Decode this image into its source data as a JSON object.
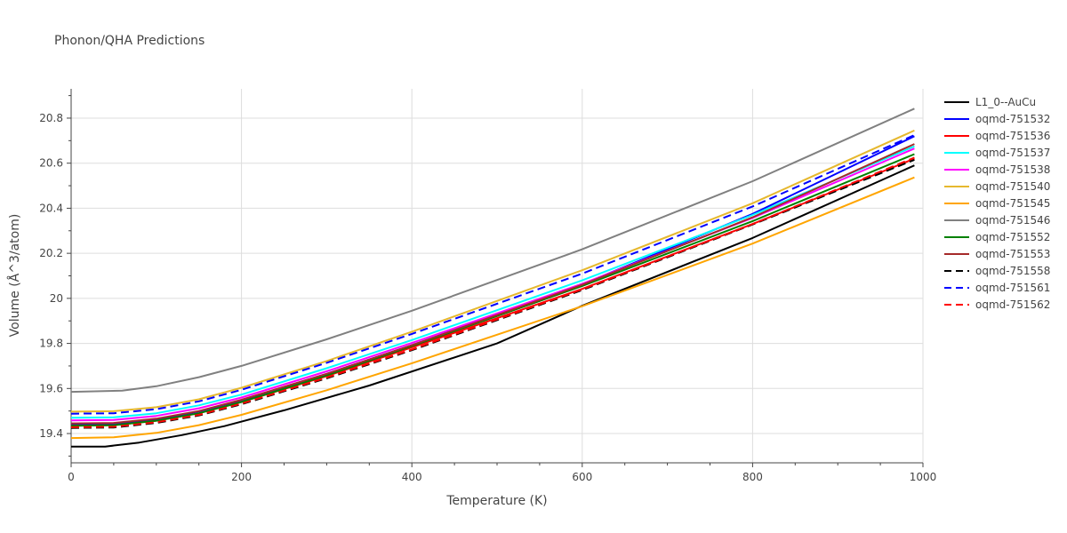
{
  "chart_data": {
    "type": "line",
    "title": "Phonon/QHA Predictions",
    "xlabel": "Temperature (K)",
    "ylabel": "Volume (Å^3/atom)",
    "xlim": [
      0,
      1000
    ],
    "ylim": [
      19.27,
      20.93
    ],
    "xticks": [
      0,
      200,
      400,
      600,
      800,
      1000
    ],
    "yticks": [
      19.4,
      19.6,
      19.8,
      20,
      20.2,
      20.4,
      20.6,
      20.8
    ],
    "ytick_labels": [
      "19.4",
      "19.6",
      "19.8",
      "20",
      "20.2",
      "20.4",
      "20.6",
      "20.8"
    ],
    "grid": true,
    "legend_position": "right",
    "series": [
      {
        "name": "L1_0--AuCu",
        "color": "#000000",
        "dash": "solid",
        "points": [
          [
            0,
            19.342
          ],
          [
            40,
            19.342
          ],
          [
            80,
            19.36
          ],
          [
            130,
            19.393
          ],
          [
            180,
            19.433
          ],
          [
            250,
            19.503
          ],
          [
            350,
            19.613
          ],
          [
            500,
            19.8
          ],
          [
            600,
            19.967
          ],
          [
            800,
            20.268
          ],
          [
            990,
            20.59
          ]
        ]
      },
      {
        "name": "oqmd-751532",
        "color": "#0000ff",
        "dash": "solid",
        "points": [
          [
            0,
            19.44
          ],
          [
            50,
            19.442
          ],
          [
            100,
            19.462
          ],
          [
            150,
            19.498
          ],
          [
            200,
            19.548
          ],
          [
            300,
            19.665
          ],
          [
            400,
            19.792
          ],
          [
            600,
            20.062
          ],
          [
            800,
            20.375
          ],
          [
            990,
            20.72
          ]
        ]
      },
      {
        "name": "oqmd-751536",
        "color": "#ff0000",
        "dash": "solid",
        "points": [
          [
            0,
            19.435
          ],
          [
            50,
            19.437
          ],
          [
            100,
            19.457
          ],
          [
            150,
            19.49
          ],
          [
            200,
            19.54
          ],
          [
            300,
            19.655
          ],
          [
            400,
            19.782
          ],
          [
            600,
            20.042
          ],
          [
            800,
            20.33
          ],
          [
            990,
            20.62
          ]
        ]
      },
      {
        "name": "oqmd-751537",
        "color": "#00ffff",
        "dash": "solid",
        "points": [
          [
            0,
            19.47
          ],
          [
            50,
            19.472
          ],
          [
            100,
            19.49
          ],
          [
            150,
            19.525
          ],
          [
            200,
            19.573
          ],
          [
            300,
            19.69
          ],
          [
            400,
            19.815
          ],
          [
            600,
            20.08
          ],
          [
            800,
            20.37
          ],
          [
            990,
            20.675
          ]
        ]
      },
      {
        "name": "oqmd-751538",
        "color": "#ff00ff",
        "dash": "solid",
        "points": [
          [
            0,
            19.458
          ],
          [
            50,
            19.46
          ],
          [
            100,
            19.478
          ],
          [
            150,
            19.512
          ],
          [
            200,
            19.56
          ],
          [
            300,
            19.676
          ],
          [
            400,
            19.802
          ],
          [
            600,
            20.065
          ],
          [
            800,
            20.357
          ],
          [
            990,
            20.665
          ]
        ]
      },
      {
        "name": "oqmd-751540",
        "color": "#e6b82e",
        "dash": "solid",
        "points": [
          [
            0,
            19.497
          ],
          [
            50,
            19.499
          ],
          [
            100,
            19.517
          ],
          [
            150,
            19.552
          ],
          [
            200,
            19.603
          ],
          [
            300,
            19.722
          ],
          [
            400,
            19.852
          ],
          [
            600,
            20.125
          ],
          [
            800,
            20.422
          ],
          [
            990,
            20.745
          ]
        ]
      },
      {
        "name": "oqmd-751545",
        "color": "#ffa500",
        "dash": "solid",
        "points": [
          [
            0,
            19.38
          ],
          [
            50,
            19.383
          ],
          [
            100,
            19.403
          ],
          [
            150,
            19.437
          ],
          [
            200,
            19.483
          ],
          [
            300,
            19.592
          ],
          [
            400,
            19.712
          ],
          [
            600,
            19.965
          ],
          [
            800,
            20.243
          ],
          [
            990,
            20.537
          ]
        ]
      },
      {
        "name": "oqmd-751546",
        "color": "#808080",
        "dash": "solid",
        "points": [
          [
            0,
            19.585
          ],
          [
            60,
            19.59
          ],
          [
            100,
            19.61
          ],
          [
            150,
            19.65
          ],
          [
            200,
            19.7
          ],
          [
            300,
            19.818
          ],
          [
            400,
            19.945
          ],
          [
            600,
            20.218
          ],
          [
            800,
            20.52
          ],
          [
            990,
            20.842
          ]
        ]
      },
      {
        "name": "oqmd-751552",
        "color": "#008000",
        "dash": "solid",
        "points": [
          [
            0,
            19.435
          ],
          [
            50,
            19.437
          ],
          [
            100,
            19.457
          ],
          [
            150,
            19.49
          ],
          [
            200,
            19.54
          ],
          [
            300,
            19.658
          ],
          [
            400,
            19.788
          ],
          [
            600,
            20.055
          ],
          [
            800,
            20.343
          ],
          [
            990,
            20.64
          ]
        ]
      },
      {
        "name": "oqmd-751553",
        "color": "#a52a2a",
        "dash": "solid",
        "points": [
          [
            0,
            19.445
          ],
          [
            50,
            19.447
          ],
          [
            100,
            19.466
          ],
          [
            150,
            19.5
          ],
          [
            200,
            19.55
          ],
          [
            300,
            19.665
          ],
          [
            400,
            19.792
          ],
          [
            600,
            20.06
          ],
          [
            800,
            20.36
          ],
          [
            990,
            20.685
          ]
        ]
      },
      {
        "name": "oqmd-751558",
        "color": "#000000",
        "dash": "dash",
        "points": [
          [
            0,
            19.425
          ],
          [
            50,
            19.427
          ],
          [
            100,
            19.447
          ],
          [
            150,
            19.48
          ],
          [
            200,
            19.53
          ],
          [
            300,
            19.645
          ],
          [
            400,
            19.77
          ],
          [
            600,
            20.037
          ],
          [
            800,
            20.328
          ],
          [
            990,
            20.615
          ]
        ]
      },
      {
        "name": "oqmd-751561",
        "color": "#0000ff",
        "dash": "dash",
        "points": [
          [
            0,
            19.488
          ],
          [
            50,
            19.49
          ],
          [
            100,
            19.508
          ],
          [
            150,
            19.543
          ],
          [
            200,
            19.594
          ],
          [
            300,
            19.714
          ],
          [
            400,
            19.842
          ],
          [
            600,
            20.11
          ],
          [
            800,
            20.408
          ],
          [
            990,
            20.725
          ]
        ]
      },
      {
        "name": "oqmd-751562",
        "color": "#ff0000",
        "dash": "dash",
        "points": [
          [
            0,
            19.428
          ],
          [
            50,
            19.43
          ],
          [
            100,
            19.45
          ],
          [
            150,
            19.483
          ],
          [
            200,
            19.533
          ],
          [
            300,
            19.648
          ],
          [
            400,
            19.773
          ],
          [
            600,
            20.04
          ],
          [
            800,
            20.33
          ],
          [
            990,
            20.625
          ]
        ]
      }
    ]
  }
}
